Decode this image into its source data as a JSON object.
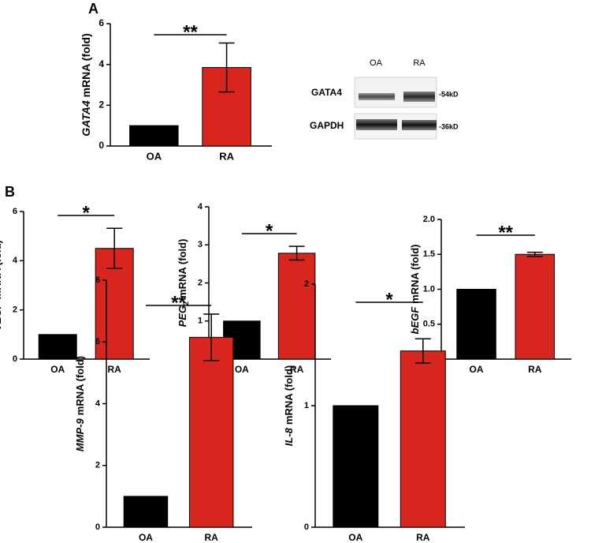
{
  "panel_labels": [
    "A",
    "B"
  ],
  "blot": {
    "lanes": [
      "OA",
      "RA"
    ],
    "rows": [
      "GATA4",
      "GAPDH"
    ],
    "sizes": [
      "-54kD",
      "-36kD"
    ]
  },
  "chart_data": [
    {
      "type": "bar",
      "y_label_gene": "GATA4",
      "y_label": "mRNA (fold)",
      "categories": [
        "OA",
        "RA"
      ],
      "values": [
        1,
        3.85
      ],
      "errors": [
        0,
        1.2
      ],
      "colors": [
        "#000000",
        "#d8261f"
      ],
      "ylim": [
        0,
        6
      ],
      "yticks": [
        0,
        2,
        4,
        6
      ],
      "significance": "**"
    },
    {
      "type": "bar",
      "y_label_gene": "VEGF",
      "y_label": "mRNA (fold)",
      "categories": [
        "OA",
        "RA"
      ],
      "values": [
        1,
        4.5
      ],
      "errors": [
        0,
        0.82
      ],
      "colors": [
        "#000000",
        "#d8261f"
      ],
      "ylim": [
        0,
        6
      ],
      "yticks": [
        0,
        2,
        4,
        6
      ],
      "significance": "*"
    },
    {
      "type": "bar",
      "y_label_gene": "PEG",
      "y_label_gene_sub": "2",
      "y_label": "mRNA (fold)",
      "categories": [
        "OA",
        "RA"
      ],
      "values": [
        1,
        2.78
      ],
      "errors": [
        0,
        0.18
      ],
      "colors": [
        "#000000",
        "#d8261f"
      ],
      "ylim": [
        0,
        4
      ],
      "yticks": [
        0,
        1,
        2,
        3,
        4
      ],
      "significance": "*"
    },
    {
      "type": "bar",
      "y_label_gene": "bEGF",
      "y_label": "mRNA (fold)",
      "categories": [
        "OA",
        "RA"
      ],
      "values": [
        1,
        1.5
      ],
      "errors": [
        0,
        0.03
      ],
      "colors": [
        "#000000",
        "#d8261f"
      ],
      "ylim": [
        0,
        2
      ],
      "yticks": [
        {
          "value": 0,
          "label": "0.0"
        },
        0.5,
        {
          "value": 1,
          "label": "1.0"
        },
        1.5,
        {
          "value": 2,
          "label": "2.0"
        }
      ],
      "significance": "**"
    },
    {
      "type": "bar",
      "y_label_gene": "MMP-9",
      "y_label": "mRNA (fold)",
      "categories": [
        "OA",
        "RA"
      ],
      "values": [
        1,
        6.15
      ],
      "errors": [
        0,
        0.75
      ],
      "colors": [
        "#000000",
        "#d8261f"
      ],
      "ylim": [
        0,
        8
      ],
      "yticks": [
        0,
        2,
        4,
        6,
        8
      ],
      "significance": "**"
    },
    {
      "type": "bar",
      "y_label_gene": "IL-8",
      "y_label": "mRNA (fold)",
      "categories": [
        "OA",
        "RA"
      ],
      "values": [
        1,
        1.45
      ],
      "errors": [
        0,
        0.1
      ],
      "colors": [
        "#000000",
        "#d8261f"
      ],
      "ylim": [
        0,
        2
      ],
      "yticks": [
        0,
        1,
        2
      ],
      "significance": "*"
    }
  ]
}
